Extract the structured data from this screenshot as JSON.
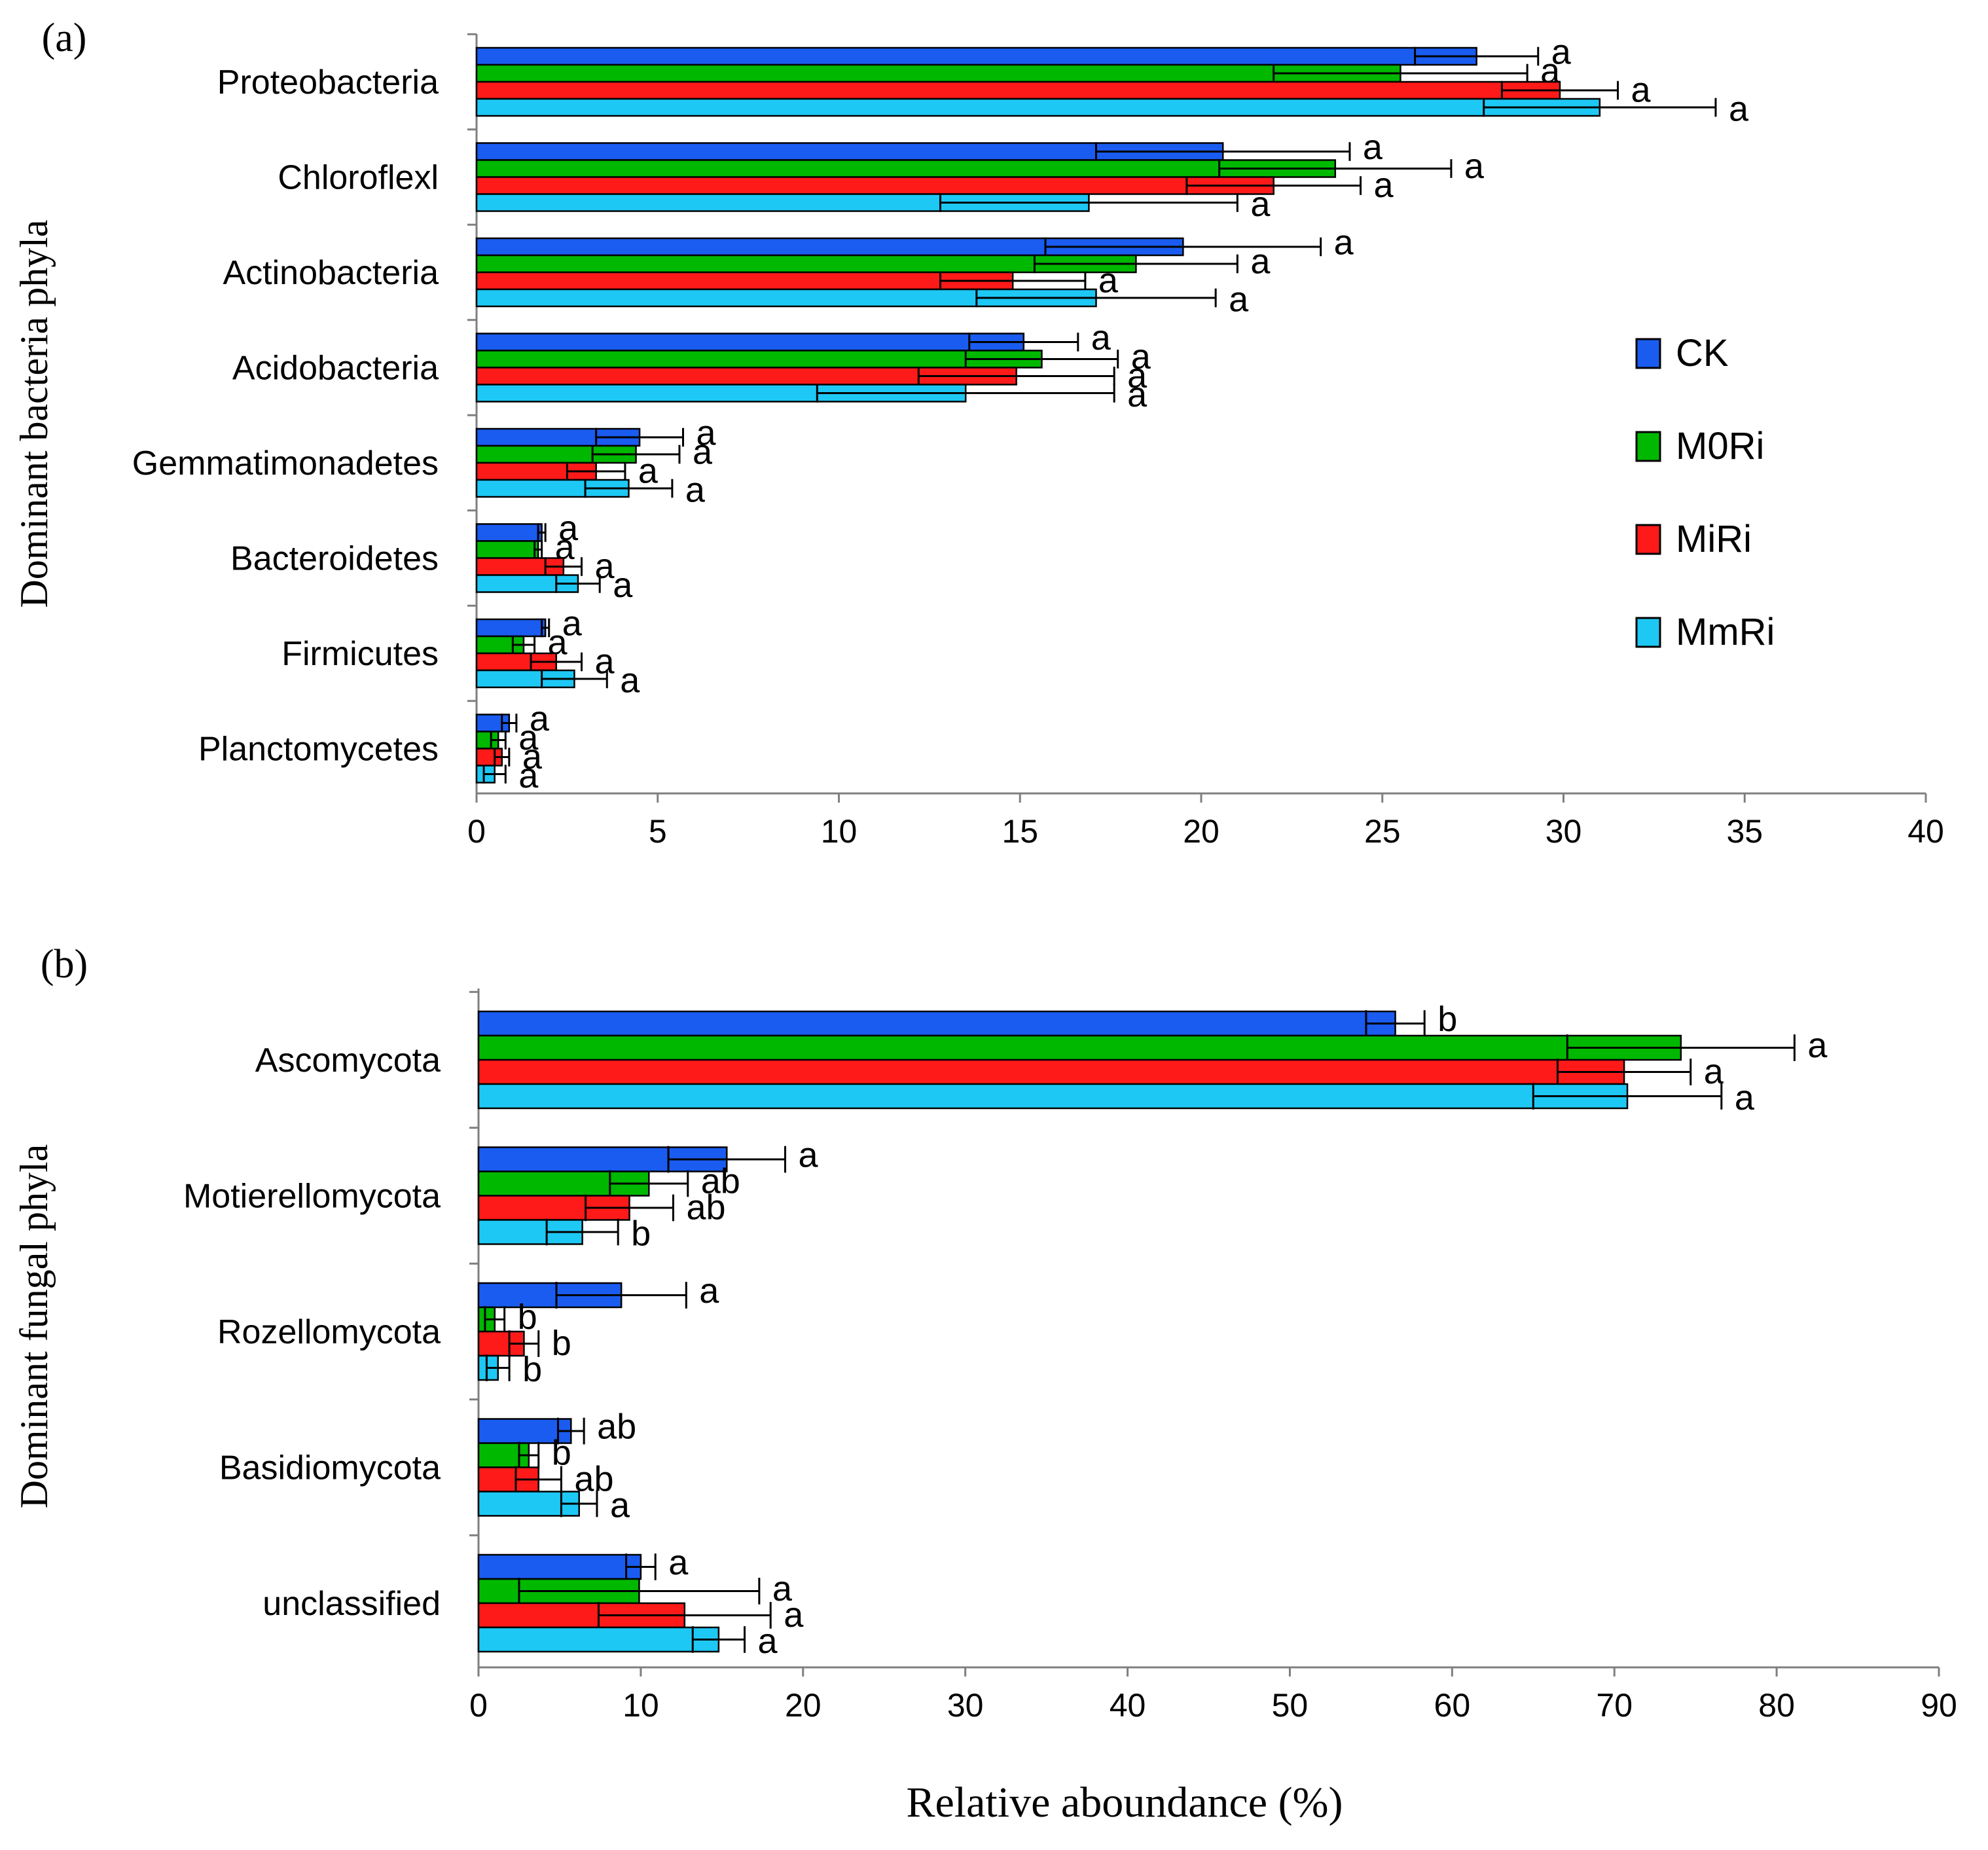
{
  "colors": {
    "CK": "#1a5cf0",
    "M0Ri": "#00b800",
    "MiRi": "#ff1a1a",
    "MmRi": "#1ec8f5"
  },
  "legend": [
    {
      "key": "CK",
      "label": "CK"
    },
    {
      "key": "M0Ri",
      "label": "M0Ri"
    },
    {
      "key": "MiRi",
      "label": "MiRi"
    },
    {
      "key": "MmRi",
      "label": "MmRi"
    }
  ],
  "xlabel": "Relative aboundance (%)",
  "chart_data": [
    {
      "panel": "(a)",
      "type": "bar",
      "orientation": "horizontal",
      "ylabel": "Dominant  bacteria phyla",
      "xlim": [
        0,
        40
      ],
      "xticks": [
        0,
        5,
        10,
        15,
        20,
        25,
        30,
        35,
        40
      ],
      "categories": [
        "Proteobacteria",
        "Chloroflexl",
        "Actinobacteria",
        "Acidobacteria",
        "Gemmatimonadetes",
        "Bacteroidetes",
        "Firmicutes",
        "Planctomycetes"
      ],
      "series": [
        {
          "name": "CK",
          "values": [
            27.6,
            20.6,
            19.5,
            15.1,
            4.5,
            1.8,
            1.9,
            0.9
          ],
          "errors": [
            1.7,
            3.5,
            3.8,
            1.5,
            1.2,
            0.1,
            0.1,
            0.2
          ],
          "letters": [
            "a",
            "a",
            "a",
            "a",
            "a",
            "a",
            "a",
            "a"
          ]
        },
        {
          "name": "M0Ri",
          "values": [
            25.5,
            23.7,
            18.2,
            15.6,
            4.4,
            1.7,
            1.3,
            0.6
          ],
          "errors": [
            3.5,
            3.2,
            2.8,
            2.1,
            1.2,
            0.1,
            0.3,
            0.2
          ],
          "letters": [
            "a",
            "a",
            "a",
            "a",
            "a",
            "a",
            "a",
            "a"
          ]
        },
        {
          "name": "MiRi",
          "values": [
            29.9,
            22.0,
            14.8,
            14.9,
            3.3,
            2.4,
            2.2,
            0.7
          ],
          "errors": [
            1.6,
            2.4,
            2.0,
            2.7,
            0.8,
            0.5,
            0.7,
            0.2
          ],
          "letters": [
            "a",
            "a",
            "a",
            "a",
            "a",
            "a",
            "a",
            "a"
          ]
        },
        {
          "name": "MmRi",
          "values": [
            31.0,
            16.9,
            17.1,
            13.5,
            4.2,
            2.8,
            2.7,
            0.5
          ],
          "errors": [
            3.2,
            4.1,
            3.3,
            4.1,
            1.2,
            0.6,
            0.9,
            0.3
          ],
          "letters": [
            "a",
            "a",
            "a",
            "a",
            "a",
            "a",
            "a",
            "a"
          ]
        }
      ]
    },
    {
      "panel": "(b)",
      "type": "bar",
      "orientation": "horizontal",
      "ylabel": "Dominant  fungal phyla",
      "xlim": [
        0,
        90
      ],
      "xticks": [
        0,
        10,
        20,
        30,
        40,
        50,
        60,
        70,
        80,
        90
      ],
      "categories": [
        "Ascomycota",
        "Motierellomycota",
        "Rozellomycota",
        "Basidiomycota",
        "unclassified"
      ],
      "series": [
        {
          "name": "CK",
          "values": [
            56.5,
            15.3,
            8.8,
            5.7,
            10.0
          ],
          "errors": [
            1.8,
            3.6,
            4.0,
            0.8,
            0.9
          ],
          "letters": [
            "b",
            "a",
            "a",
            "ab",
            "a"
          ]
        },
        {
          "name": "M0Ri",
          "values": [
            74.1,
            10.5,
            1.0,
            3.1,
            9.9
          ],
          "errors": [
            7.0,
            2.4,
            0.6,
            0.6,
            7.4
          ],
          "letters": [
            "a",
            "ab",
            "b",
            "b",
            "a"
          ]
        },
        {
          "name": "MiRi",
          "values": [
            70.6,
            9.3,
            2.8,
            3.7,
            12.7
          ],
          "errors": [
            4.1,
            2.7,
            0.9,
            1.4,
            5.3
          ],
          "letters": [
            "a",
            "ab",
            "b",
            "ab",
            "a"
          ]
        },
        {
          "name": "MmRi",
          "values": [
            70.8,
            6.4,
            1.2,
            6.2,
            14.8
          ],
          "errors": [
            5.8,
            2.2,
            0.7,
            1.1,
            1.6
          ],
          "letters": [
            "a",
            "b",
            "b",
            "a",
            "a"
          ]
        }
      ]
    }
  ]
}
